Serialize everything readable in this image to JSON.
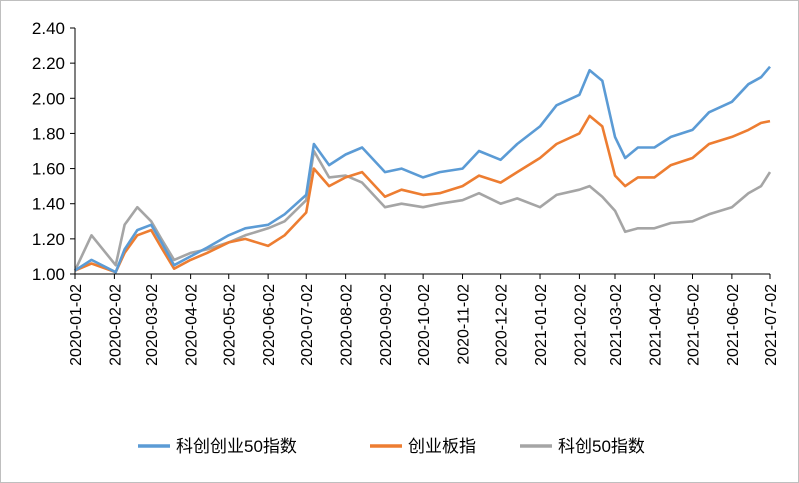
{
  "chart_data": {
    "type": "line",
    "title": "",
    "xlabel": "",
    "ylabel": "",
    "ylim": [
      1.0,
      2.4
    ],
    "yticks": [
      "1.00",
      "1.20",
      "1.40",
      "1.60",
      "1.80",
      "2.00",
      "2.20",
      "2.40"
    ],
    "x_tick_labels": [
      "2020-01-02",
      "2020-02-02",
      "2020-03-02",
      "2020-04-02",
      "2020-05-02",
      "2020-06-02",
      "2020-07-02",
      "2020-08-02",
      "2020-09-02",
      "2020-10-02",
      "2020-11-02",
      "2020-12-02",
      "2021-01-02",
      "2021-02-02",
      "2021-03-02",
      "2021-04-02",
      "2021-05-02",
      "2021-06-02",
      "2021-07-02"
    ],
    "x": [
      "2020-01-02",
      "2020-01-15",
      "2020-02-03",
      "2020-02-10",
      "2020-02-20",
      "2020-03-02",
      "2020-03-10",
      "2020-03-20",
      "2020-04-02",
      "2020-04-15",
      "2020-05-02",
      "2020-05-15",
      "2020-06-02",
      "2020-06-15",
      "2020-07-02",
      "2020-07-08",
      "2020-07-20",
      "2020-08-02",
      "2020-08-15",
      "2020-09-02",
      "2020-09-15",
      "2020-10-02",
      "2020-10-15",
      "2020-11-02",
      "2020-11-15",
      "2020-12-02",
      "2020-12-15",
      "2021-01-02",
      "2021-01-15",
      "2021-02-02",
      "2021-02-10",
      "2021-02-20",
      "2021-03-02",
      "2021-03-10",
      "2021-03-20",
      "2021-04-02",
      "2021-04-15",
      "2021-05-02",
      "2021-05-15",
      "2021-06-02",
      "2021-06-15",
      "2021-06-25",
      "2021-07-02"
    ],
    "series": [
      {
        "name": "科创创业50指数",
        "color": "#5b9bd5",
        "values": [
          1.02,
          1.08,
          1.01,
          1.14,
          1.25,
          1.28,
          1.18,
          1.05,
          1.1,
          1.15,
          1.22,
          1.26,
          1.28,
          1.34,
          1.45,
          1.74,
          1.62,
          1.68,
          1.72,
          1.58,
          1.6,
          1.55,
          1.58,
          1.6,
          1.7,
          1.65,
          1.74,
          1.84,
          1.96,
          2.02,
          2.16,
          2.1,
          1.78,
          1.66,
          1.72,
          1.72,
          1.78,
          1.82,
          1.92,
          1.98,
          2.08,
          2.12,
          2.18
        ]
      },
      {
        "name": "创业板指",
        "color": "#ed7d31",
        "values": [
          1.02,
          1.06,
          1.01,
          1.12,
          1.22,
          1.25,
          1.15,
          1.03,
          1.08,
          1.12,
          1.18,
          1.2,
          1.16,
          1.22,
          1.35,
          1.6,
          1.5,
          1.55,
          1.58,
          1.44,
          1.48,
          1.45,
          1.46,
          1.5,
          1.56,
          1.52,
          1.58,
          1.66,
          1.74,
          1.8,
          1.9,
          1.84,
          1.56,
          1.5,
          1.55,
          1.55,
          1.62,
          1.66,
          1.74,
          1.78,
          1.82,
          1.86,
          1.87
        ]
      },
      {
        "name": "科创50指数",
        "color": "#a5a5a5",
        "values": [
          1.02,
          1.22,
          1.05,
          1.28,
          1.38,
          1.3,
          1.2,
          1.08,
          1.12,
          1.14,
          1.18,
          1.22,
          1.26,
          1.3,
          1.42,
          1.7,
          1.55,
          1.56,
          1.52,
          1.38,
          1.4,
          1.38,
          1.4,
          1.42,
          1.46,
          1.4,
          1.43,
          1.38,
          1.45,
          1.48,
          1.5,
          1.44,
          1.36,
          1.24,
          1.26,
          1.26,
          1.29,
          1.3,
          1.34,
          1.38,
          1.46,
          1.5,
          1.58
        ]
      }
    ],
    "legend": {
      "position": "bottom"
    },
    "grid": false
  }
}
